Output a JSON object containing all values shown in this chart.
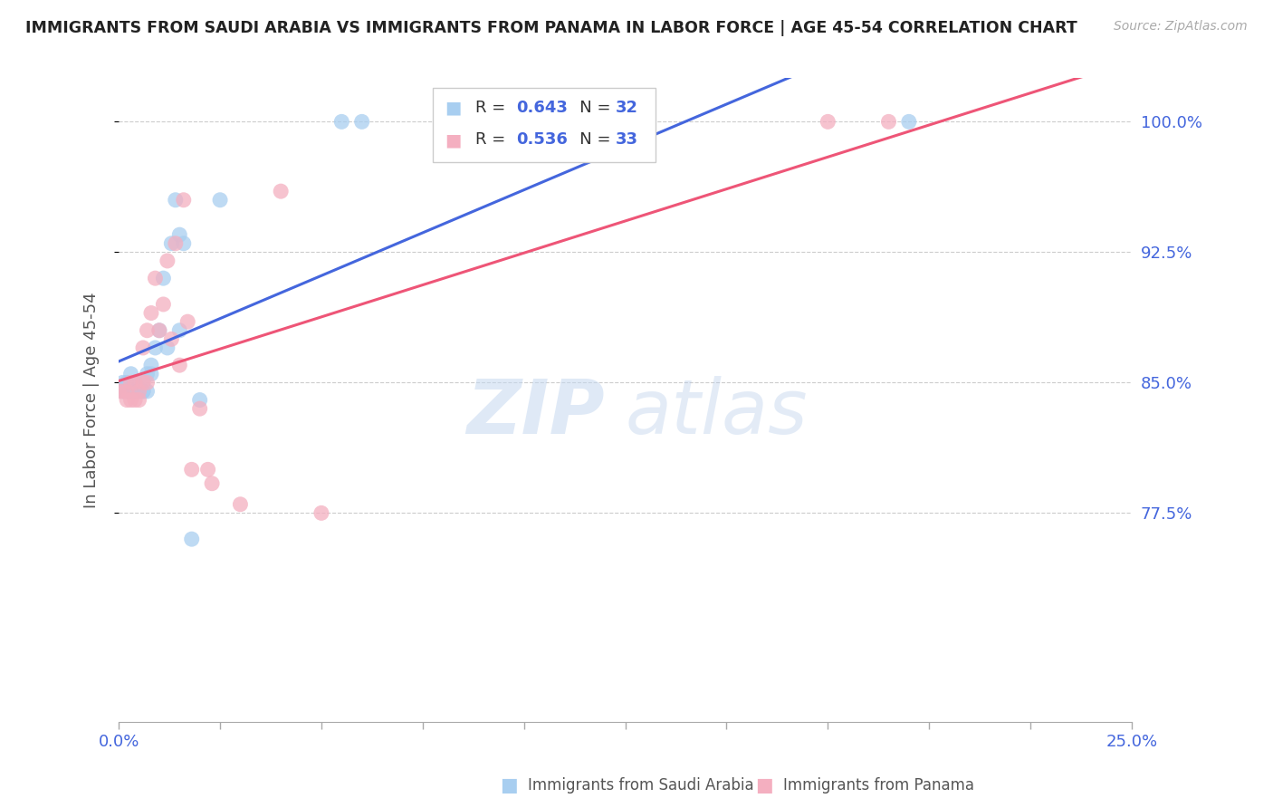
{
  "title": "IMMIGRANTS FROM SAUDI ARABIA VS IMMIGRANTS FROM PANAMA IN LABOR FORCE | AGE 45-54 CORRELATION CHART",
  "source": "Source: ZipAtlas.com",
  "ylabel": "In Labor Force | Age 45-54",
  "xlim": [
    0.0,
    0.25
  ],
  "ylim": [
    0.655,
    1.025
  ],
  "yticks": [
    0.775,
    0.85,
    0.925,
    1.0
  ],
  "ytick_labels": [
    "77.5%",
    "85.0%",
    "92.5%",
    "100.0%"
  ],
  "xticks": [
    0.0,
    0.025,
    0.05,
    0.075,
    0.1,
    0.125,
    0.15,
    0.175,
    0.2,
    0.225,
    0.25
  ],
  "xtick_show": [
    0.0,
    0.25
  ],
  "xtick_labels_show": [
    "0.0%",
    "25.0%"
  ],
  "legend_blue_r": "0.643",
  "legend_blue_n": "32",
  "legend_pink_r": "0.536",
  "legend_pink_n": "33",
  "blue_label": "Immigrants from Saudi Arabia",
  "pink_label": "Immigrants from Panama",
  "blue_color": "#a8cef0",
  "pink_color": "#f4afc0",
  "blue_line_color": "#4466dd",
  "pink_line_color": "#ee5577",
  "r_n_color": "#4466dd",
  "label_color": "#333333",
  "watermark_zip": "ZIP",
  "watermark_atlas": "atlas",
  "blue_x": [
    0.001,
    0.001,
    0.002,
    0.002,
    0.003,
    0.003,
    0.004,
    0.004,
    0.005,
    0.005,
    0.006,
    0.006,
    0.006,
    0.007,
    0.007,
    0.008,
    0.008,
    0.009,
    0.01,
    0.011,
    0.012,
    0.013,
    0.014,
    0.015,
    0.015,
    0.016,
    0.018,
    0.02,
    0.025,
    0.055,
    0.06,
    0.195
  ],
  "blue_y": [
    0.845,
    0.85,
    0.845,
    0.85,
    0.855,
    0.845,
    0.845,
    0.85,
    0.845,
    0.848,
    0.845,
    0.845,
    0.85,
    0.845,
    0.855,
    0.855,
    0.86,
    0.87,
    0.88,
    0.91,
    0.87,
    0.93,
    0.955,
    0.935,
    0.88,
    0.93,
    0.76,
    0.84,
    0.955,
    1.0,
    1.0,
    1.0
  ],
  "pink_x": [
    0.0,
    0.001,
    0.002,
    0.002,
    0.003,
    0.003,
    0.004,
    0.004,
    0.005,
    0.005,
    0.006,
    0.006,
    0.007,
    0.007,
    0.008,
    0.009,
    0.01,
    0.011,
    0.012,
    0.013,
    0.014,
    0.015,
    0.016,
    0.017,
    0.018,
    0.02,
    0.022,
    0.023,
    0.03,
    0.04,
    0.05,
    0.175,
    0.19
  ],
  "pink_y": [
    0.845,
    0.845,
    0.84,
    0.845,
    0.84,
    0.85,
    0.84,
    0.85,
    0.845,
    0.84,
    0.85,
    0.87,
    0.88,
    0.85,
    0.89,
    0.91,
    0.88,
    0.895,
    0.92,
    0.875,
    0.93,
    0.86,
    0.955,
    0.885,
    0.8,
    0.835,
    0.8,
    0.792,
    0.78,
    0.96,
    0.775,
    1.0,
    1.0
  ]
}
